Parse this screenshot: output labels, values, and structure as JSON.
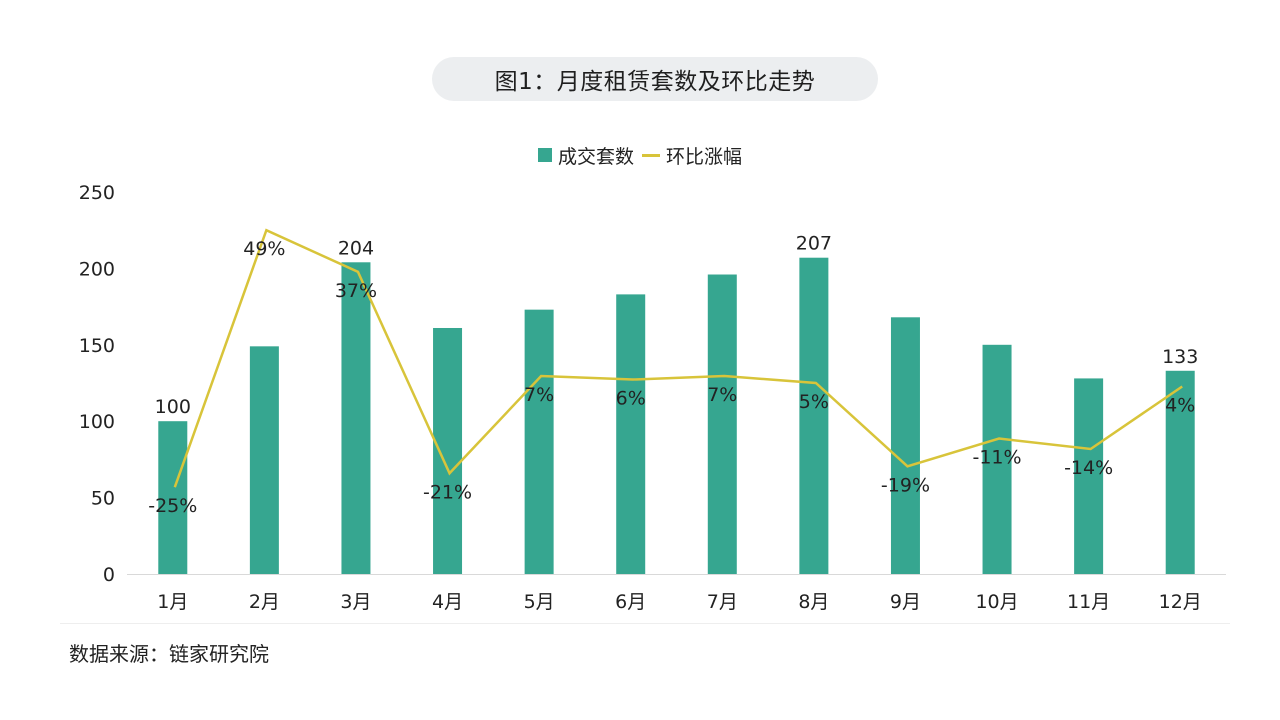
{
  "title": "图1：月度租赁套数及环比走势",
  "source": "数据来源：链家研究院",
  "colors": {
    "bar": "#36a690",
    "line": "#d8c43a",
    "axis": "#d9d9d9",
    "text": "#222222"
  },
  "chart_data": {
    "type": "bar",
    "categories": [
      "1月",
      "2月",
      "3月",
      "4月",
      "5月",
      "6月",
      "7月",
      "8月",
      "9月",
      "10月",
      "11月",
      "12月"
    ],
    "series": [
      {
        "name": "成交套数",
        "type": "bar",
        "axis": "left",
        "values": [
          100,
          149,
          204,
          161,
          173,
          183,
          196,
          207,
          168,
          150,
          128,
          133
        ],
        "data_labels": [
          "100",
          "",
          "204",
          "",
          "",
          "",
          "",
          "207",
          "",
          "",
          "",
          "133"
        ]
      },
      {
        "name": "环比涨幅",
        "type": "line",
        "axis": "right",
        "values": [
          -25,
          49,
          37,
          -21,
          7,
          6,
          7,
          5,
          -19,
          -11,
          -14,
          4
        ],
        "data_labels": [
          "-25%",
          "49%",
          "37%",
          "-21%",
          "7%",
          "6%",
          "7%",
          "5%",
          "-19%",
          "-11%",
          "-14%",
          "4%"
        ]
      }
    ],
    "y_ticks": [
      "0",
      "50",
      "100",
      "150",
      "200",
      "250"
    ],
    "ylim": [
      0,
      250
    ],
    "y2lim": [
      -50,
      60
    ],
    "legend_position": "top-center",
    "grid": false
  }
}
